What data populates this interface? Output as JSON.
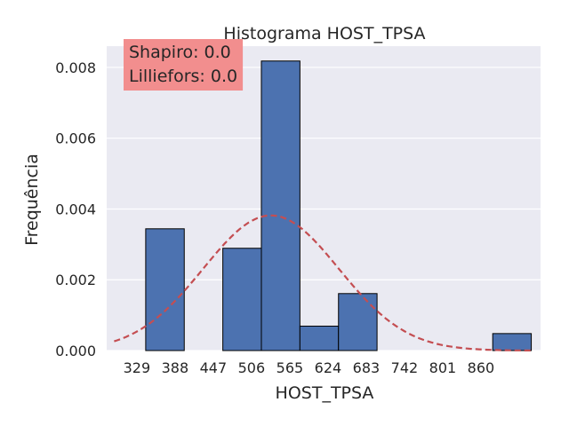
{
  "chart_data": {
    "type": "bar",
    "title": "Histograma HOST_TPSA",
    "xlabel": "HOST_TPSA",
    "ylabel": "Frequência",
    "xticks": [
      "329",
      "388",
      "447",
      "506",
      "565",
      "624",
      "683",
      "742",
      "801",
      "860"
    ],
    "yticks": [
      "0.000",
      "0.002",
      "0.004",
      "0.006",
      "0.008"
    ],
    "xlim": [
      282.5,
      952
    ],
    "ylim": [
      0,
      0.0086
    ],
    "bins": [
      {
        "x0": 342.7,
        "x1": 402.2,
        "density": 0.00344
      },
      {
        "x0": 402.2,
        "x1": 461.7,
        "density": 0.0
      },
      {
        "x0": 461.7,
        "x1": 521.2,
        "density": 0.00289
      },
      {
        "x0": 521.2,
        "x1": 580.7,
        "density": 0.00818
      },
      {
        "x0": 580.7,
        "x1": 640.2,
        "density": 0.00069
      },
      {
        "x0": 640.2,
        "x1": 699.7,
        "density": 0.00161
      },
      {
        "x0": 699.7,
        "x1": 759.2,
        "density": 0.0
      },
      {
        "x0": 759.2,
        "x1": 818.7,
        "density": 0.0
      },
      {
        "x0": 818.7,
        "x1": 878.2,
        "density": 0.0
      },
      {
        "x0": 878.2,
        "x1": 937.7,
        "density": 0.00048
      }
    ],
    "normal_fit": {
      "mean": 536,
      "std": 104.5
    },
    "grid": true,
    "bar_color": "#4c72b0",
    "curve_color": "#c44e52",
    "background_color": "#eaeaf2",
    "annotation": {
      "lines": [
        "Shapiro: 0.0",
        "Lilliefors: 0.0"
      ],
      "box_color": "#f28e8e",
      "placement": "top-left"
    }
  }
}
